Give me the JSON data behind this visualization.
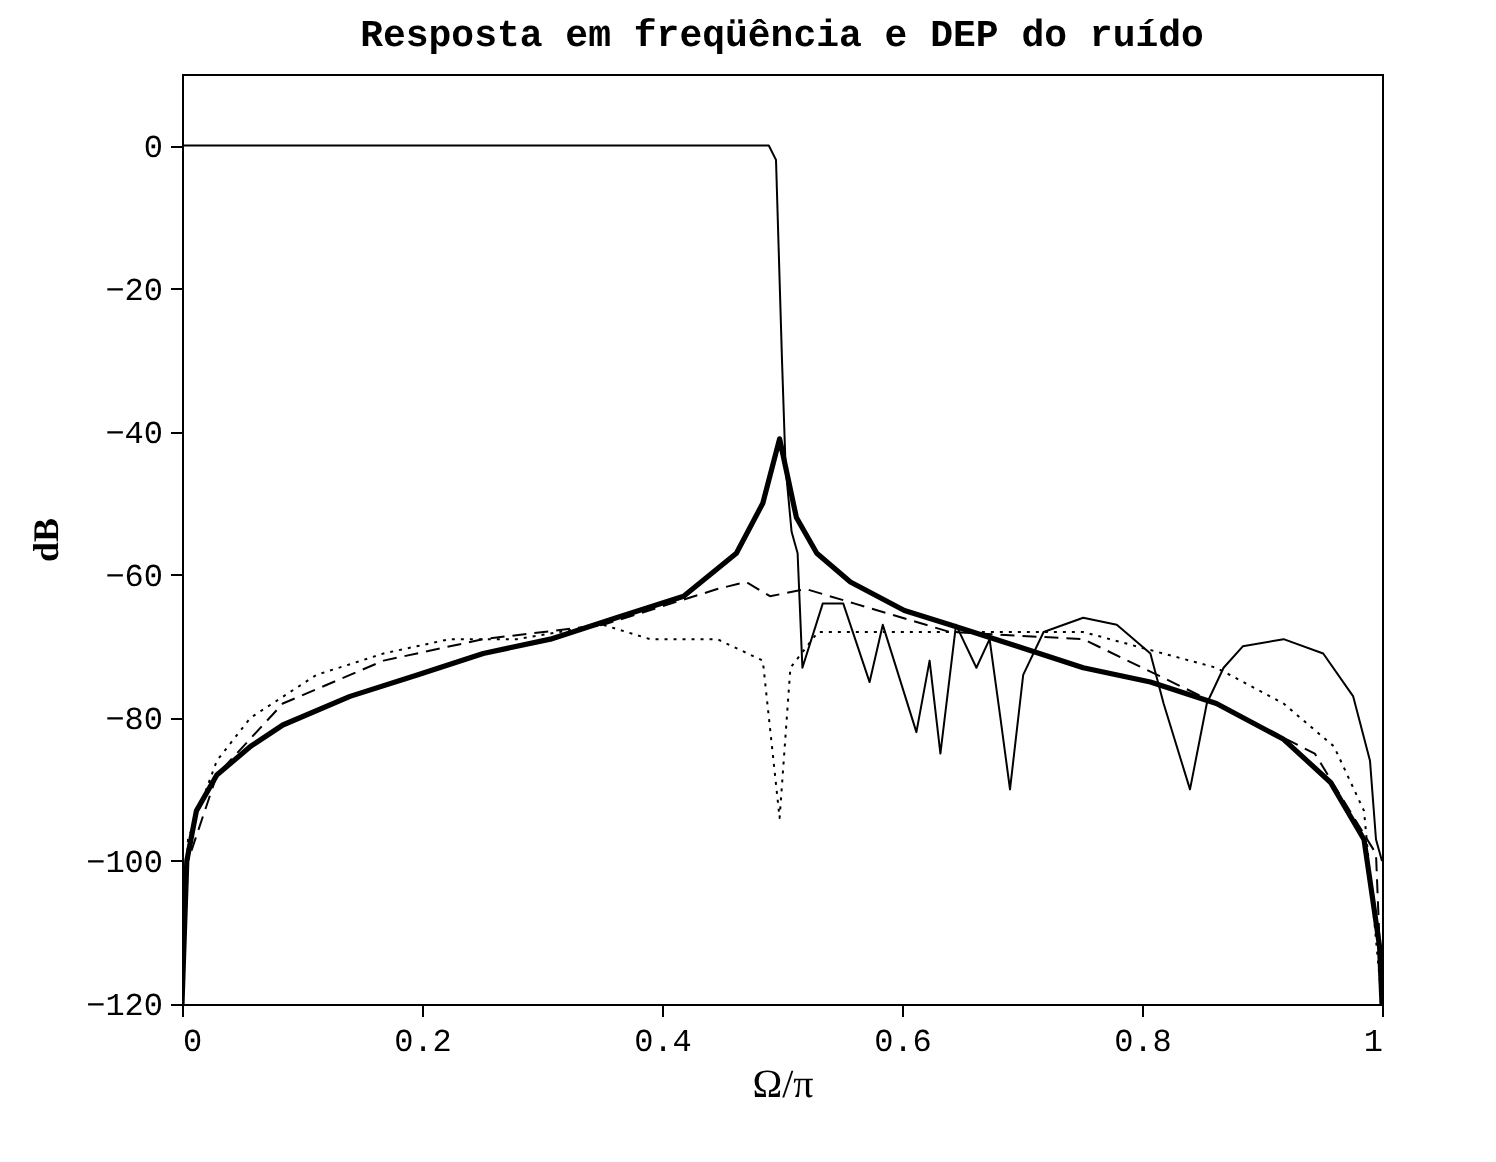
{
  "chart_data": {
    "type": "line",
    "title": "Resposta em freqüência e DEP do ruído",
    "xlabel": "Ω/π",
    "ylabel": "dB",
    "xlim": [
      0,
      1
    ],
    "ylim": [
      -120,
      10
    ],
    "xticks": [
      0,
      0.2,
      0.4,
      0.6,
      0.8,
      1
    ],
    "yticks": [
      -120,
      -100,
      -80,
      -60,
      -40,
      -20,
      0
    ],
    "grid": false,
    "series": [
      {
        "color": "#000000",
        "line_style": "solid",
        "x": [
          0,
          0.004,
          0.012,
          0.029,
          0.057,
          0.084,
          0.14,
          0.196,
          0.251,
          0.307,
          0.362,
          0.418,
          0.462,
          0.484,
          0.498,
          0.512,
          0.529,
          0.557,
          0.602,
          0.64,
          0.696,
          0.751,
          0.807,
          0.862,
          0.918,
          0.957,
          0.985,
          0.998,
          1
        ],
        "values": [
          -120,
          -100,
          -93,
          -88,
          -84,
          -81,
          -77,
          -74,
          -71,
          -69,
          -66,
          -63,
          -57,
          -50,
          -41,
          -52,
          -57,
          -61,
          -65,
          -67,
          -70,
          -73,
          -75,
          -78,
          -83,
          -89,
          -97,
          -112,
          -120
        ]
      },
      {
        "color": "#000000",
        "line_style": "solid",
        "x": [
          0,
          0.2,
          0.4,
          0.489,
          0.495,
          0.5,
          0.503,
          0.508,
          0.513,
          0.517,
          0.534,
          0.551,
          0.573,
          0.584,
          0.612,
          0.623,
          0.632,
          0.645,
          0.662,
          0.673,
          0.682,
          0.69,
          0.701,
          0.718,
          0.751,
          0.779,
          0.807,
          0.818,
          0.84,
          0.854,
          0.868,
          0.884,
          0.918,
          0.951,
          0.976,
          0.99,
          0.995,
          1
        ],
        "values": [
          0,
          0,
          0,
          0,
          -2,
          -30,
          -45,
          -54,
          -57,
          -73,
          -64,
          -64,
          -75,
          -67,
          -82,
          -72,
          -85,
          -67,
          -73,
          -69,
          -80,
          -90,
          -74,
          -68,
          -66,
          -67,
          -71,
          -78,
          -90,
          -78,
          -73,
          -70,
          -69,
          -71,
          -77,
          -86,
          -97,
          -100
        ]
      },
      {
        "color": "#000000",
        "line_style": "dashed",
        "x": [
          0,
          0.005,
          0.029,
          0.084,
          0.168,
          0.251,
          0.351,
          0.446,
          0.47,
          0.49,
          0.52,
          0.56,
          0.64,
          0.751,
          0.862,
          0.944,
          0.995,
          1
        ],
        "values": [
          -120,
          -100,
          -88,
          -78,
          -72,
          -69,
          -67,
          -62,
          -61,
          -63,
          -62,
          -64,
          -68,
          -69,
          -78,
          -85,
          -99,
          -120
        ]
      },
      {
        "color": "#000000",
        "line_style": "dotted",
        "x": [
          0,
          0.005,
          0.029,
          0.057,
          0.112,
          0.168,
          0.223,
          0.279,
          0.351,
          0.39,
          0.446,
          0.484,
          0.498,
          0.507,
          0.53,
          0.6,
          0.7,
          0.751,
          0.862,
          0.918,
          0.96,
          0.985,
          1
        ],
        "values": [
          -120,
          -97,
          -86,
          -80,
          -74,
          -71,
          -69,
          -69,
          -67,
          -69,
          -69,
          -72,
          -94,
          -73,
          -68,
          -68,
          -68,
          -68,
          -73,
          -78,
          -84,
          -93,
          -120
        ]
      }
    ]
  }
}
